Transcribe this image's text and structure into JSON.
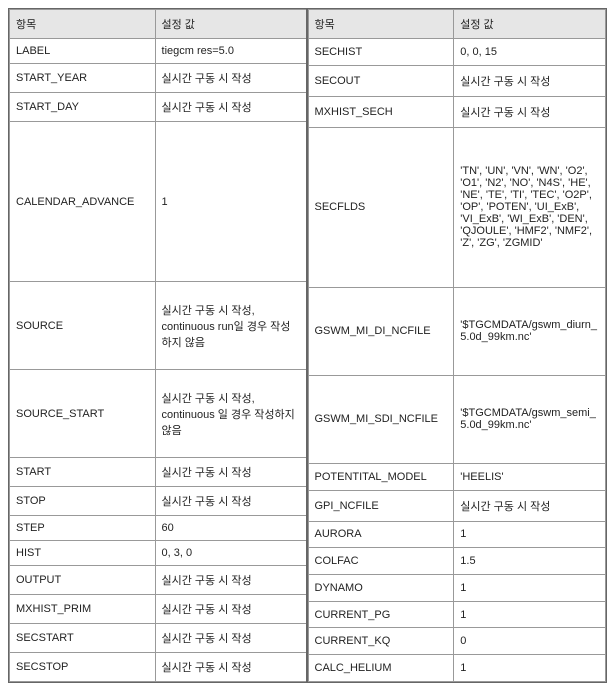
{
  "headers": {
    "left_item": "항목",
    "left_val": "설정 값",
    "right_item": "항목",
    "right_val": "설정 값"
  },
  "left": [
    {
      "item": "LABEL",
      "val": "tiegcm res=5.0"
    },
    {
      "item": "START_YEAR",
      "val": "실시간 구동 시 작성"
    },
    {
      "item": "START_DAY",
      "val": "실시간 구동 시 작성"
    },
    {
      "item": "CALENDAR_ADVANCE",
      "val": "1"
    },
    {
      "item": "SOURCE",
      "val": "실시간 구동 시 작성, continuous run일 경우 작성하지 않음"
    },
    {
      "item": "SOURCE_START",
      "val": "실시간 구동 시 작성, continuous 일 경우 작성하지 않음"
    },
    {
      "item": "START",
      "val": "실시간 구동 시 작성"
    },
    {
      "item": "STOP",
      "val": "실시간 구동 시 작성"
    },
    {
      "item": "STEP",
      "val": "60"
    },
    {
      "item": "HIST",
      "val": "0, 3, 0"
    },
    {
      "item": "OUTPUT",
      "val": "실시간 구동 시 작성"
    },
    {
      "item": "MXHIST_PRIM",
      "val": "실시간 구동 시 작성"
    },
    {
      "item": "SECSTART",
      "val": "실시간 구동 시 작성"
    },
    {
      "item": "SECSTOP",
      "val": "실시간 구동 시 작성"
    }
  ],
  "right": [
    {
      "item": "SECHIST",
      "val": "0, 0, 15"
    },
    {
      "item": "SECOUT",
      "val": "실시간 구동 시 작성"
    },
    {
      "item": "MXHIST_SECH",
      "val": "실시간 구동 시 작성"
    },
    {
      "item": "SECFLDS",
      "val": "'TN', 'UN', 'VN', 'WN', 'O2', 'O1', 'N2', 'NO', 'N4S', 'HE', 'NE', 'TE', 'TI', 'TEC', 'O2P', 'OP', 'POTEN', 'UI_ExB', 'VI_ExB', 'WI_ExB', 'DEN', 'QJOULE', 'HMF2', 'NMF2', 'Z', 'ZG', 'ZGMID'"
    },
    {
      "item": "GSWM_MI_DI_NCFILE",
      "val": "'$TGCMDATA/gswm_diurn_5.0d_99km.nc'"
    },
    {
      "item": "GSWM_MI_SDI_NCFILE",
      "val": "'$TGCMDATA/gswm_semi_5.0d_99km.nc'"
    },
    {
      "item": "POTENTITAL_MODEL",
      "val": "'HEELIS'"
    },
    {
      "item": "GPI_NCFILE",
      "val": "실시간 구동 시 작성"
    },
    {
      "item": "AURORA",
      "val": "1"
    },
    {
      "item": "COLFAC",
      "val": "1.5"
    },
    {
      "item": "DYNAMO",
      "val": "1"
    },
    {
      "item": "CURRENT_PG",
      "val": "1"
    },
    {
      "item": "CURRENT_KQ",
      "val": "0"
    },
    {
      "item": "CALC_HELIUM",
      "val": "1"
    }
  ],
  "row_heights": {
    "tall_index": 3,
    "med_indices": [
      4,
      5
    ]
  }
}
